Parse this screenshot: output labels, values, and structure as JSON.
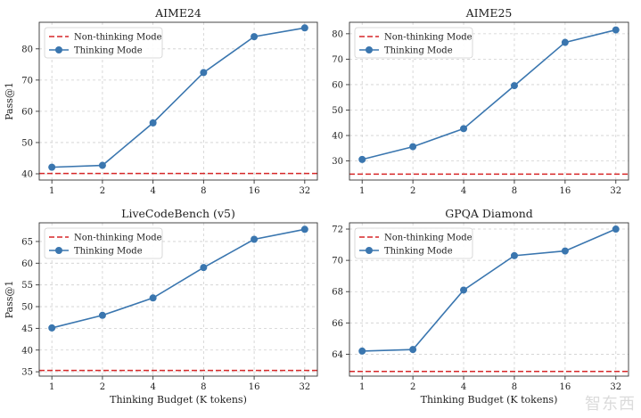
{
  "watermark": "智东西",
  "legend_labels": {
    "baseline": "Non-thinking Mode",
    "thinking": "Thinking Mode"
  },
  "colors": {
    "baseline": "#d62728",
    "thinking": "#3a76af",
    "grid": "#cfcfcf",
    "axis": "#333333"
  },
  "chart_data": [
    {
      "type": "line",
      "title": "AIME24",
      "xlabel": "",
      "ylabel": "Pass@1",
      "categories": [
        "1",
        "2",
        "4",
        "8",
        "16",
        "32"
      ],
      "x": [
        1,
        2,
        4,
        8,
        16,
        32
      ],
      "x_scale": "log2",
      "yticks": [
        40,
        50,
        60,
        70,
        80
      ],
      "ylim": [
        38,
        88.5
      ],
      "grid": true,
      "legend": "top-left",
      "series": [
        {
          "name": "Non-thinking Mode",
          "style": "dashed",
          "values": [
            40.1,
            40.1,
            40.1,
            40.1,
            40.1,
            40.1
          ]
        },
        {
          "name": "Thinking Mode",
          "style": "solid-markers",
          "values": [
            42.1,
            42.7,
            56.3,
            72.4,
            83.9,
            86.7
          ]
        }
      ]
    },
    {
      "type": "line",
      "title": "AIME25",
      "xlabel": "",
      "ylabel": "",
      "categories": [
        "1",
        "2",
        "4",
        "8",
        "16",
        "32"
      ],
      "x": [
        1,
        2,
        4,
        8,
        16,
        32
      ],
      "x_scale": "log2",
      "yticks": [
        30,
        40,
        50,
        60,
        70,
        80
      ],
      "ylim": [
        22.5,
        84.5
      ],
      "grid": true,
      "legend": "top-left",
      "series": [
        {
          "name": "Non-thinking Mode",
          "style": "dashed",
          "values": [
            24.8,
            24.8,
            24.8,
            24.8,
            24.8,
            24.8
          ]
        },
        {
          "name": "Thinking Mode",
          "style": "solid-markers",
          "values": [
            30.6,
            35.6,
            42.7,
            59.6,
            76.6,
            81.5
          ]
        }
      ]
    },
    {
      "type": "line",
      "title": "LiveCodeBench (v5)",
      "xlabel": "Thinking Budget (K tokens)",
      "ylabel": "Pass@1",
      "categories": [
        "1",
        "2",
        "4",
        "8",
        "16",
        "32"
      ],
      "x": [
        1,
        2,
        4,
        8,
        16,
        32
      ],
      "x_scale": "log2",
      "yticks": [
        35,
        40,
        45,
        50,
        55,
        60,
        65
      ],
      "ylim": [
        34.0,
        69.3
      ],
      "grid": true,
      "legend": "top-left",
      "series": [
        {
          "name": "Non-thinking Mode",
          "style": "dashed",
          "values": [
            35.3,
            35.3,
            35.3,
            35.3,
            35.3,
            35.3
          ]
        },
        {
          "name": "Thinking Mode",
          "style": "solid-markers",
          "values": [
            45.1,
            48.0,
            52.0,
            59.0,
            65.5,
            67.8
          ]
        }
      ]
    },
    {
      "type": "line",
      "title": "GPQA Diamond",
      "xlabel": "Thinking Budget (K tokens)",
      "ylabel": "",
      "categories": [
        "1",
        "2",
        "4",
        "8",
        "16",
        "32"
      ],
      "x": [
        1,
        2,
        4,
        8,
        16,
        32
      ],
      "x_scale": "log2",
      "yticks": [
        64,
        66,
        68,
        70,
        72
      ],
      "ylim": [
        62.6,
        72.4
      ],
      "grid": true,
      "legend": "top-left",
      "series": [
        {
          "name": "Non-thinking Mode",
          "style": "dashed",
          "values": [
            62.9,
            62.9,
            62.9,
            62.9,
            62.9,
            62.9
          ]
        },
        {
          "name": "Thinking Mode",
          "style": "solid-markers",
          "values": [
            64.2,
            64.3,
            68.1,
            70.3,
            70.6,
            72.0
          ]
        }
      ]
    }
  ]
}
